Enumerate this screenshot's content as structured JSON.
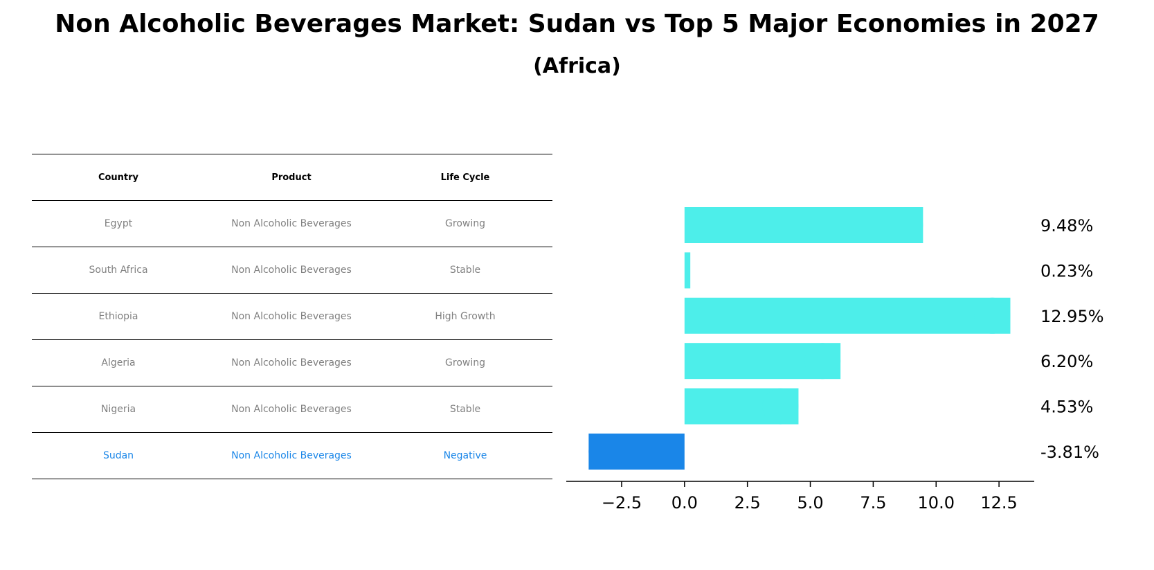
{
  "title": "Non Alcoholic Beverages Market: Sudan vs Top 5 Major Economies in 2027",
  "subtitle": "(Africa)",
  "table": {
    "headers": [
      "Country",
      "Product",
      "Life Cycle"
    ],
    "rows": [
      [
        "Egypt",
        "Non Alcoholic Beverages",
        "Growing"
      ],
      [
        "South Africa",
        "Non Alcoholic Beverages",
        "Stable"
      ],
      [
        "Ethiopia",
        "Non Alcoholic Beverages",
        "High Growth"
      ],
      [
        "Algeria",
        "Non Alcoholic Beverages",
        "Growing"
      ],
      [
        "Nigeria",
        "Non Alcoholic Beverages",
        "Stable"
      ],
      [
        "Sudan",
        "Non Alcoholic Beverages",
        "Negative"
      ]
    ]
  },
  "colors": {
    "bar": "#4deeea",
    "highlight": "#1a86e8"
  },
  "chart_data": {
    "type": "bar",
    "orientation": "horizontal",
    "categories": [
      "Egypt",
      "South Africa",
      "Ethiopia",
      "Algeria",
      "Nigeria",
      "Sudan"
    ],
    "values": [
      9.48,
      0.23,
      12.95,
      6.2,
      4.53,
      -3.81
    ],
    "value_labels": [
      "9.48%",
      "0.23%",
      "12.95%",
      "6.20%",
      "4.53%",
      "-3.81%"
    ],
    "highlight": "Sudan",
    "xlim": [
      -4.7,
      13.9
    ],
    "xticks": [
      -2.5,
      0.0,
      2.5,
      5.0,
      7.5,
      10.0,
      12.5
    ],
    "xtick_labels": [
      "−2.5",
      "0.0",
      "2.5",
      "5.0",
      "7.5",
      "10.0",
      "12.5"
    ],
    "grid": false
  }
}
